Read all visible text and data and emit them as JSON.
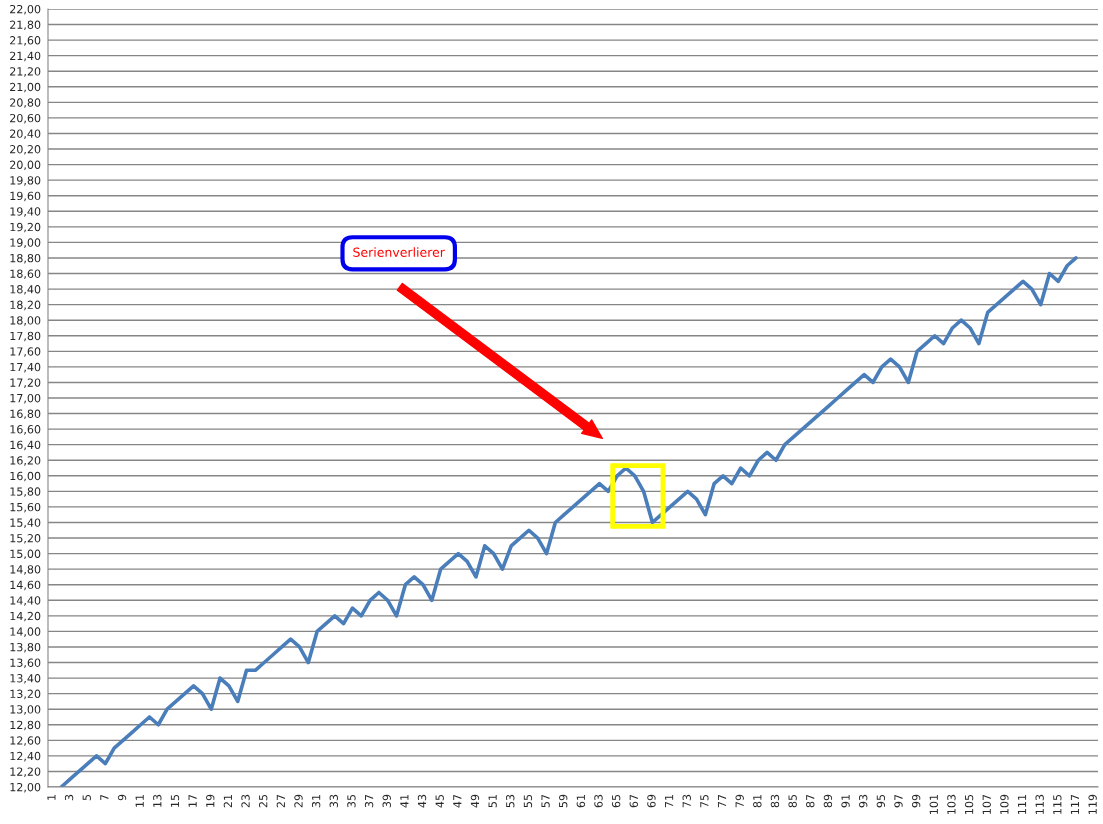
{
  "chart_data": {
    "type": "line",
    "categories": [
      "1",
      null,
      "3",
      null,
      "5",
      null,
      "7",
      null,
      "9",
      null,
      "11",
      null,
      "13",
      null,
      "15",
      null,
      "17",
      null,
      "19",
      null,
      "21",
      null,
      "23",
      null,
      "25",
      null,
      "27",
      null,
      "29",
      null,
      "31",
      null,
      "33",
      null,
      "35",
      null,
      "37",
      null,
      "39",
      null,
      "41",
      null,
      "43",
      null,
      "45",
      null,
      "47",
      null,
      "49",
      null,
      "51",
      null,
      "53",
      null,
      "55",
      null,
      "57",
      null,
      "59",
      null,
      "61",
      null,
      "63",
      null,
      "65",
      null,
      "67",
      null,
      "69",
      null,
      "71",
      null,
      "73",
      null,
      "75",
      null,
      "77",
      null,
      "79",
      null,
      "81",
      null,
      "83",
      null,
      "85",
      null,
      "87",
      null,
      "89",
      null,
      "91",
      null,
      "93",
      null,
      "95",
      null,
      "97",
      null,
      "99",
      null,
      "101",
      null,
      "103",
      null,
      "105",
      null,
      "107",
      null,
      "109",
      null,
      "111",
      null,
      "113",
      null,
      "115",
      null,
      "117",
      null,
      "119"
    ],
    "series": [
      {
        "color": "#4a7ebb",
        "values": [
          null,
          12.0,
          12.1,
          12.2,
          12.3,
          12.4,
          12.3,
          12.5,
          12.6,
          12.7,
          12.8,
          12.9,
          12.8,
          13.0,
          13.1,
          13.2,
          13.3,
          13.2,
          13.0,
          13.4,
          13.3,
          13.1,
          13.5,
          13.5,
          13.6,
          13.7,
          13.8,
          13.9,
          13.8,
          13.6,
          14.0,
          14.1,
          14.2,
          14.1,
          14.3,
          14.2,
          14.4,
          14.5,
          14.4,
          14.2,
          14.6,
          14.7,
          14.6,
          14.4,
          14.8,
          14.9,
          15.0,
          14.9,
          14.7,
          15.1,
          15.0,
          14.8,
          15.1,
          15.2,
          15.3,
          15.2,
          15.0,
          15.4,
          15.5,
          15.6,
          15.7,
          15.8,
          15.9,
          15.8,
          16.0,
          16.1,
          16.0,
          15.8,
          15.4,
          15.5,
          15.6,
          15.7,
          15.8,
          15.7,
          15.5,
          15.9,
          16.0,
          15.9,
          16.1,
          16.0,
          16.2,
          16.3,
          16.2,
          16.4,
          16.5,
          16.6,
          16.7,
          16.8,
          16.9,
          17.0,
          17.1,
          17.2,
          17.3,
          17.2,
          17.4,
          17.5,
          17.4,
          17.2,
          17.6,
          17.7,
          17.8,
          17.7,
          17.9,
          18.0,
          17.9,
          17.7,
          18.1,
          18.2,
          18.3,
          18.4,
          18.5,
          18.4,
          18.2,
          18.6,
          18.5,
          18.7,
          18.8,
          null,
          null
        ]
      }
    ],
    "ylim": [
      12,
      22
    ],
    "yticks": [
      {
        "value": 12,
        "label": "12,00"
      },
      {
        "value": 12.2,
        "label": "12,20"
      },
      {
        "value": 12.4,
        "label": "12,40"
      },
      {
        "value": 12.6,
        "label": "12,60"
      },
      {
        "value": 12.8,
        "label": "12,80"
      },
      {
        "value": 13,
        "label": "13,00"
      },
      {
        "value": 13.2,
        "label": "13,20"
      },
      {
        "value": 13.4,
        "label": "13,40"
      },
      {
        "value": 13.6,
        "label": "13,60"
      },
      {
        "value": 13.8,
        "label": "13,80"
      },
      {
        "value": 14,
        "label": "14,00"
      },
      {
        "value": 14.2,
        "label": "14,20"
      },
      {
        "value": 14.4,
        "label": "14,40"
      },
      {
        "value": 14.6,
        "label": "14,60"
      },
      {
        "value": 14.8,
        "label": "14,80"
      },
      {
        "value": 15,
        "label": "15,00"
      },
      {
        "value": 15.2,
        "label": "15,20"
      },
      {
        "value": 15.4,
        "label": "15,40"
      },
      {
        "value": 15.6,
        "label": "15,60"
      },
      {
        "value": 15.8,
        "label": "15,80"
      },
      {
        "value": 16,
        "label": "16,00"
      },
      {
        "value": 16.2,
        "label": "16,20"
      },
      {
        "value": 16.4,
        "label": "16,40"
      },
      {
        "value": 16.6,
        "label": "16,60"
      },
      {
        "value": 16.8,
        "label": "16,80"
      },
      {
        "value": 17,
        "label": "17,00"
      },
      {
        "value": 17.2,
        "label": "17,20"
      },
      {
        "value": 17.4,
        "label": "17,40"
      },
      {
        "value": 17.6,
        "label": "17,60"
      },
      {
        "value": 17.8,
        "label": "17,80"
      },
      {
        "value": 18,
        "label": "18,00"
      },
      {
        "value": 18.2,
        "label": "18,20"
      },
      {
        "value": 18.4,
        "label": "18,40"
      },
      {
        "value": 18.6,
        "label": "18,60"
      },
      {
        "value": 18.8,
        "label": "18,80"
      },
      {
        "value": 19,
        "label": "19,00"
      },
      {
        "value": 19.2,
        "label": "19,20"
      },
      {
        "value": 19.4,
        "label": "19,40"
      },
      {
        "value": 19.6,
        "label": "19,60"
      },
      {
        "value": 19.8,
        "label": "19,80"
      },
      {
        "value": 20,
        "label": "20,00"
      },
      {
        "value": 20.2,
        "label": "20,20"
      },
      {
        "value": 20.4,
        "label": "20,40"
      },
      {
        "value": 20.6,
        "label": "20,60"
      },
      {
        "value": 20.8,
        "label": "20,80"
      },
      {
        "value": 21,
        "label": "21,00"
      },
      {
        "value": 21.2,
        "label": "21,20"
      },
      {
        "value": 21.4,
        "label": "21,40"
      },
      {
        "value": 21.6,
        "label": "21,60"
      },
      {
        "value": 21.8,
        "label": "21,80"
      },
      {
        "value": 22,
        "label": "22,00"
      }
    ],
    "grid": "y",
    "annotations": [
      "Serienverlierer"
    ]
  }
}
